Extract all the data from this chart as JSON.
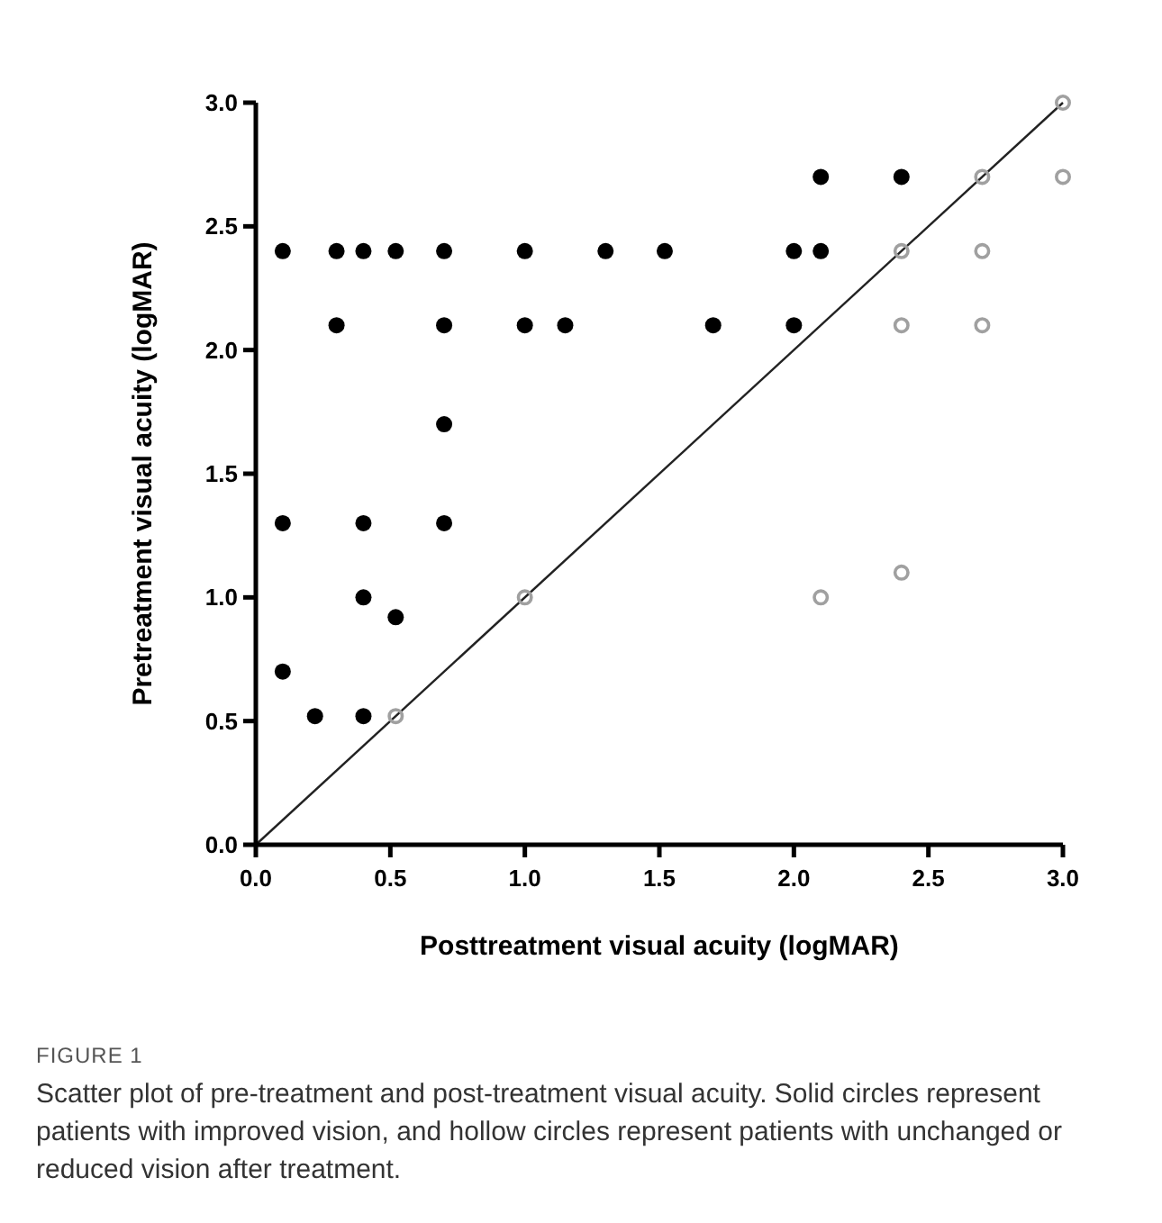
{
  "chart_data": {
    "type": "scatter",
    "title": "FIGURE 1",
    "xlabel": "Posttreatment visual acuity (logMAR)",
    "ylabel": "Pretreatment visual acuity (logMAR)",
    "annotations": [
      "Scatter plot of pre-treatment and post-treatment visual acuity. Solid circles represent patients with improved vision, and hollow circles represent patients with unchanged or reduced vision after treatment."
    ],
    "xlim": [
      0,
      3
    ],
    "ylim": [
      0,
      3
    ],
    "xticks": [
      {
        "value": 0,
        "label": "0.0"
      },
      {
        "value": 0.5,
        "label": "0.5"
      },
      {
        "value": 1,
        "label": "1.0"
      },
      {
        "value": 1.5,
        "label": "1.5"
      },
      {
        "value": 2,
        "label": "2.0"
      },
      {
        "value": 2.5,
        "label": "2.5"
      },
      {
        "value": 3,
        "label": "3.0"
      }
    ],
    "yticks": [
      {
        "value": 0,
        "label": "0.0"
      },
      {
        "value": 0.5,
        "label": "0.5"
      },
      {
        "value": 1,
        "label": "1.0"
      },
      {
        "value": 1.5,
        "label": "1.5"
      },
      {
        "value": 2,
        "label": "2.0"
      },
      {
        "value": 2.5,
        "label": "2.5"
      },
      {
        "value": 3,
        "label": "3.0"
      }
    ],
    "grid": false,
    "marker": "circle",
    "series": [
      {
        "type": "line",
        "color": "#222222",
        "marker": "none",
        "x": [
          0,
          3
        ],
        "values": [
          0,
          3
        ]
      },
      {
        "color": "#000000",
        "x": [
          0.1,
          0.3,
          0.4,
          0.52,
          0.7,
          1.0,
          1.3,
          1.52,
          2.0,
          2.1,
          0.3,
          0.7,
          1.0,
          1.15,
          1.7,
          2.0,
          2.1,
          2.4,
          0.7,
          0.1,
          0.4,
          0.7,
          0.4,
          0.52,
          0.1,
          0.22,
          0.4
        ],
        "values": [
          2.4,
          2.4,
          2.4,
          2.4,
          2.4,
          2.4,
          2.4,
          2.4,
          2.4,
          2.4,
          2.1,
          2.1,
          2.1,
          2.1,
          2.1,
          2.1,
          2.7,
          2.7,
          1.7,
          1.3,
          1.3,
          1.3,
          1.0,
          0.92,
          0.7,
          0.52,
          0.52
        ]
      },
      {
        "color": "#a0a0a0",
        "marker": "circle-open",
        "x": [
          0.52,
          1.0,
          2.4,
          2.4,
          2.7,
          2.7,
          2.7,
          3.0,
          3.0,
          2.1,
          2.4
        ],
        "values": [
          0.52,
          1.0,
          2.4,
          2.1,
          2.7,
          2.4,
          2.1,
          3.0,
          2.7,
          1.0,
          1.1
        ]
      }
    ]
  }
}
